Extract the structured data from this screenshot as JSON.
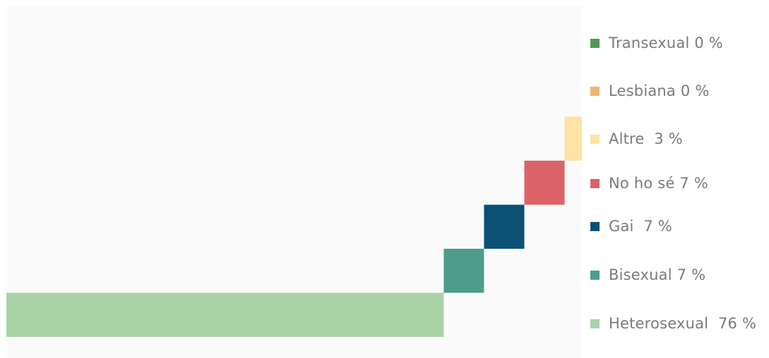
{
  "chart_data": {
    "type": "bar",
    "categories": [
      "Heterosexual",
      "Bisexual",
      "Gai",
      "No ho sé",
      "Altre",
      "Lesbiana",
      "Transexual"
    ],
    "values": [
      76,
      7,
      7,
      7,
      3,
      0,
      0
    ],
    "colors": [
      "#a9d3a6",
      "#4c9d8c",
      "#0b5174",
      "#db6368",
      "#fde3a6",
      "#f0b475",
      "#4f9a51"
    ],
    "legend": [
      {
        "label": "Transexual 0 %",
        "color": "#4f9a51"
      },
      {
        "label": "Lesbiana 0 %",
        "color": "#f0b475"
      },
      {
        "label": "Altre  3 %",
        "color": "#fde3a6"
      },
      {
        "label": "No ho sé 7 %",
        "color": "#db6368"
      },
      {
        "label": "Gai  7 %",
        "color": "#0b5174"
      },
      {
        "label": "Bisexual 7 %",
        "color": "#4c9d8c"
      },
      {
        "label": "Heterosexual  76 %",
        "color": "#a9d3a6"
      }
    ],
    "legend_position": "right",
    "layout": "stacked-waterfall-horizontal",
    "grid": false
  }
}
